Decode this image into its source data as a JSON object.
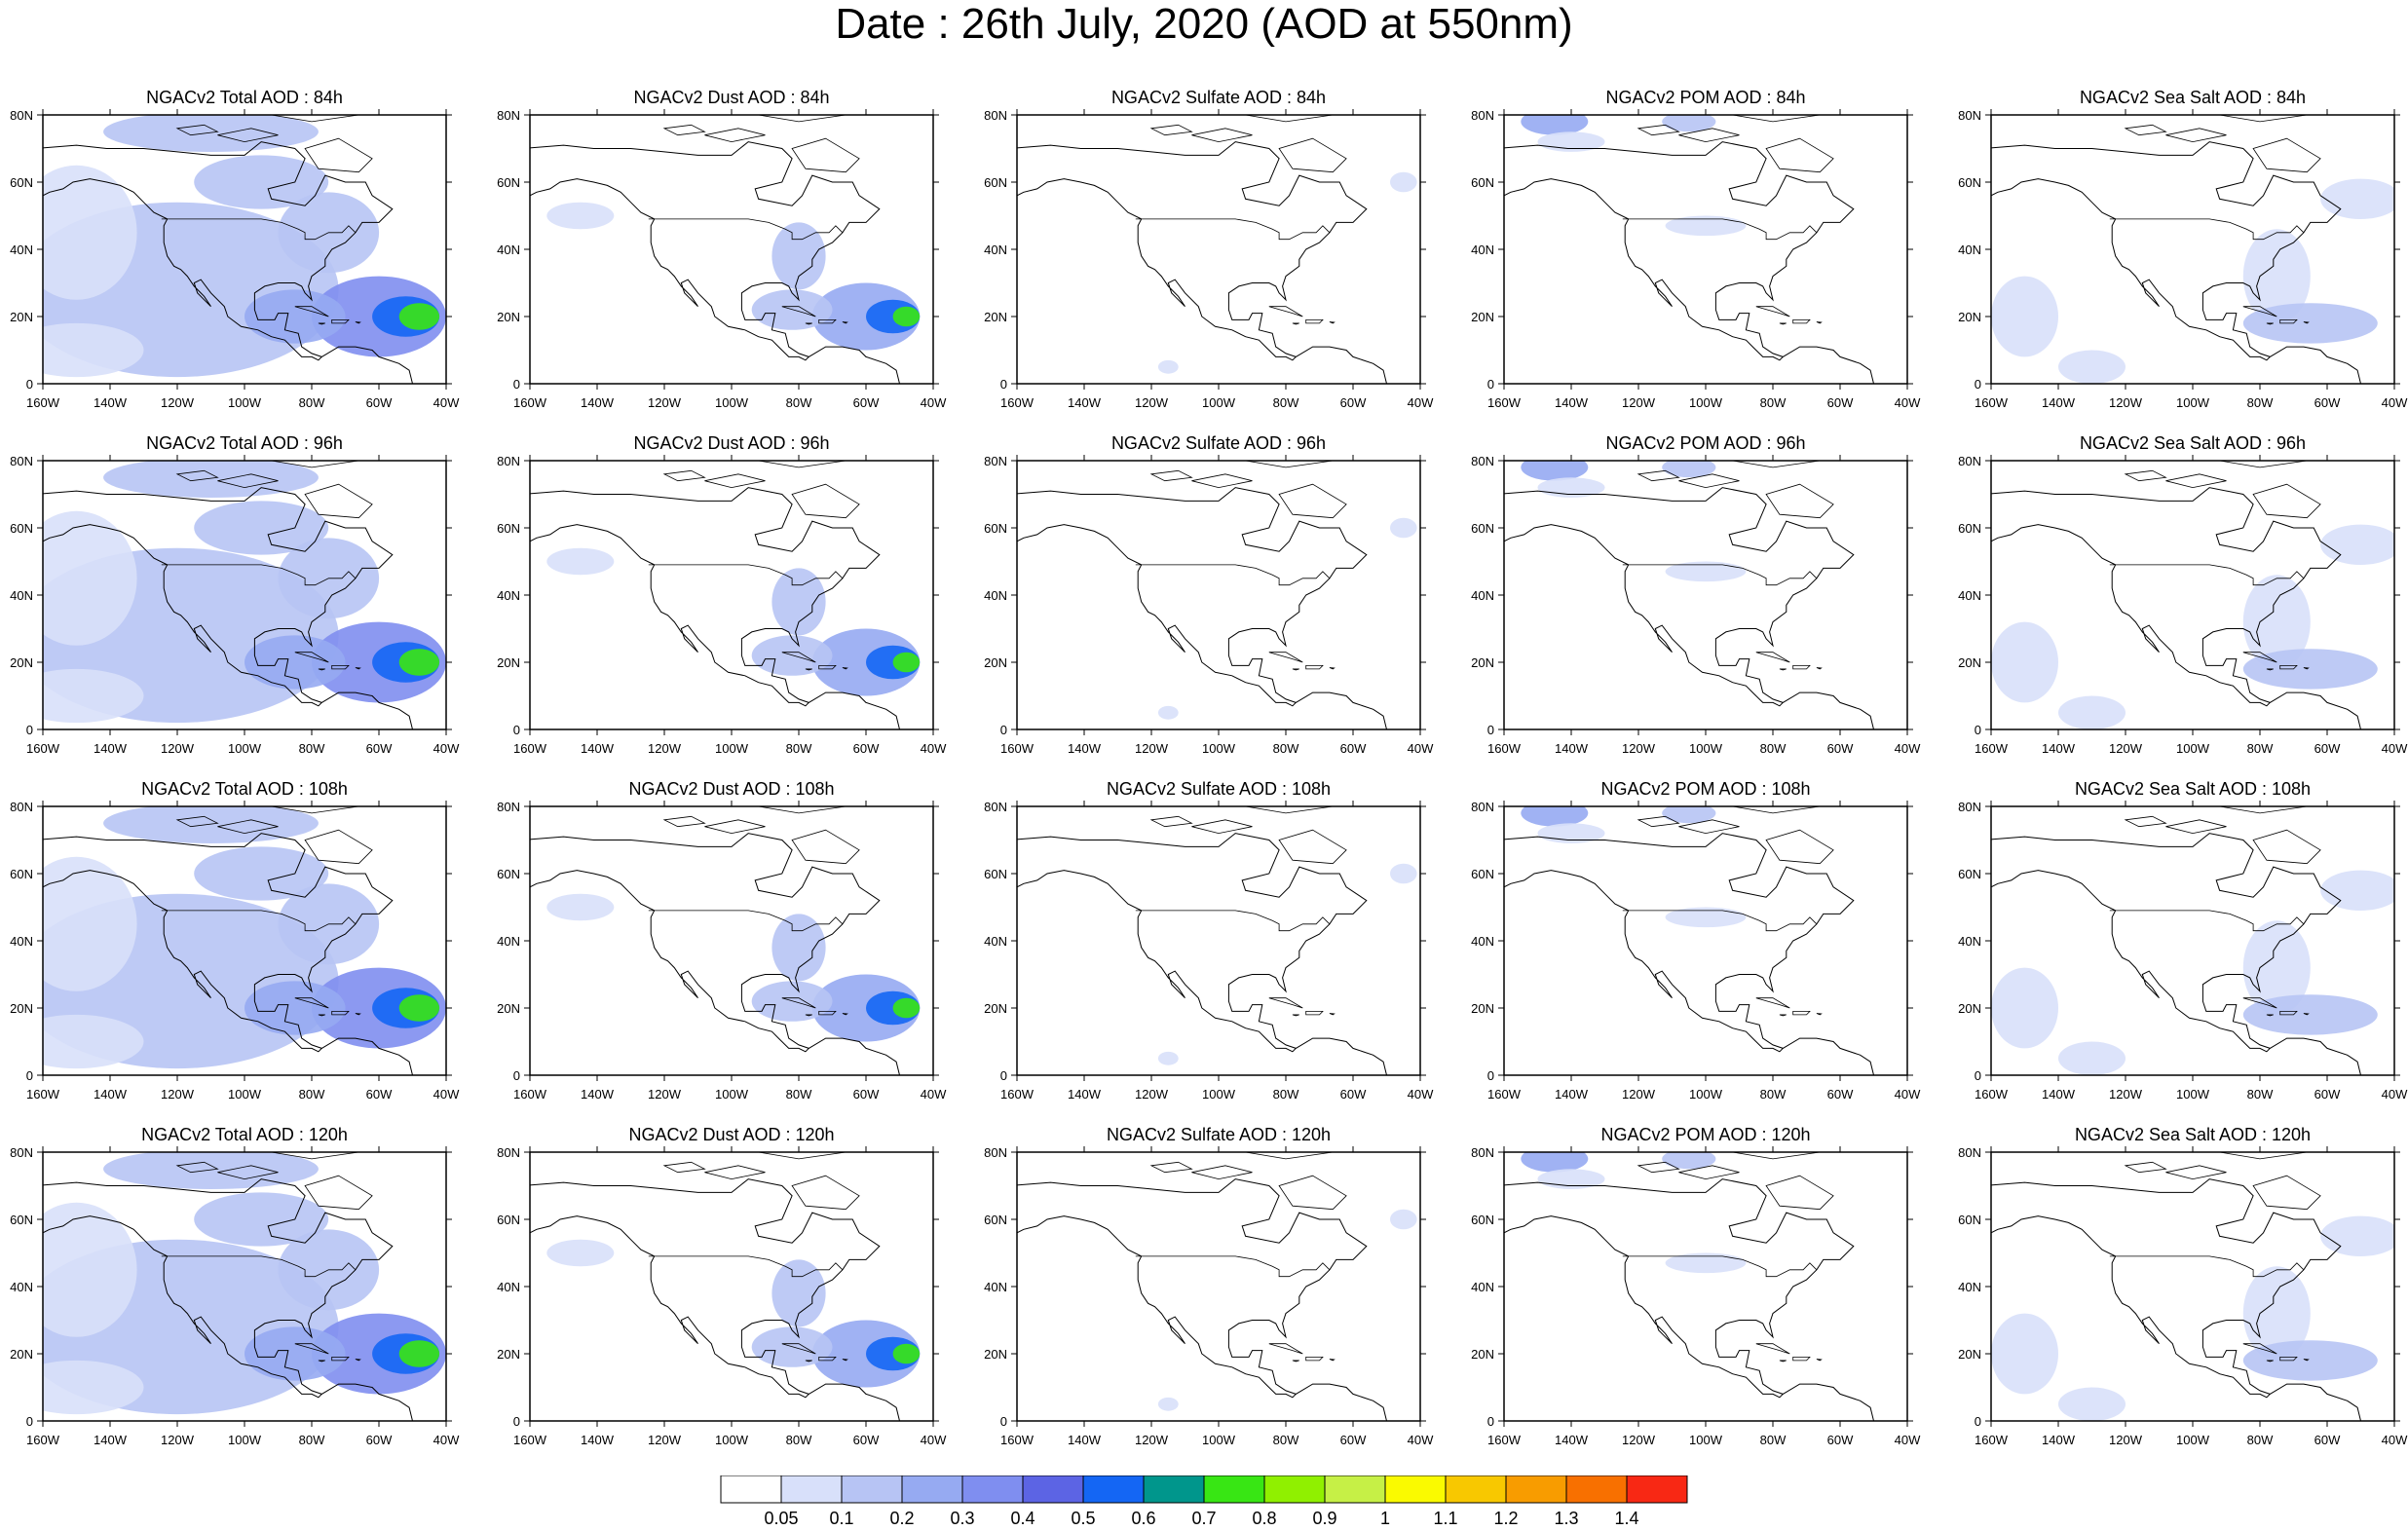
{
  "title": "Date : 26th July, 2020 (AOD at 550nm)",
  "lat_labels": [
    "80N",
    "60N",
    "40N",
    "20N",
    "0"
  ],
  "lon_labels": [
    "160W",
    "140W",
    "120W",
    "100W",
    "80W",
    "60W",
    "40W"
  ],
  "panels": [
    {
      "title": "NGACv2 Total AOD : 84h",
      "species": "total",
      "hour": 84
    },
    {
      "title": "NGACv2 Dust AOD : 84h",
      "species": "dust",
      "hour": 84
    },
    {
      "title": "NGACv2 Sulfate AOD : 84h",
      "species": "sulfate",
      "hour": 84
    },
    {
      "title": "NGACv2 POM AOD : 84h",
      "species": "pom",
      "hour": 84
    },
    {
      "title": "NGACv2 Sea Salt AOD : 84h",
      "species": "seasalt",
      "hour": 84
    },
    {
      "title": "NGACv2 Total AOD : 96h",
      "species": "total",
      "hour": 96
    },
    {
      "title": "NGACv2 Dust AOD : 96h",
      "species": "dust",
      "hour": 96
    },
    {
      "title": "NGACv2 Sulfate AOD : 96h",
      "species": "sulfate",
      "hour": 96
    },
    {
      "title": "NGACv2 POM AOD : 96h",
      "species": "pom",
      "hour": 96
    },
    {
      "title": "NGACv2 Sea Salt AOD : 96h",
      "species": "seasalt",
      "hour": 96
    },
    {
      "title": "NGACv2 Total AOD : 108h",
      "species": "total",
      "hour": 108
    },
    {
      "title": "NGACv2 Dust AOD : 108h",
      "species": "dust",
      "hour": 108
    },
    {
      "title": "NGACv2 Sulfate AOD : 108h",
      "species": "sulfate",
      "hour": 108
    },
    {
      "title": "NGACv2 POM AOD : 108h",
      "species": "pom",
      "hour": 108
    },
    {
      "title": "NGACv2 Sea Salt AOD : 108h",
      "species": "seasalt",
      "hour": 108
    },
    {
      "title": "NGACv2 Total AOD : 120h",
      "species": "total",
      "hour": 120
    },
    {
      "title": "NGACv2 Dust AOD : 120h",
      "species": "dust",
      "hour": 120
    },
    {
      "title": "NGACv2 Sulfate AOD : 120h",
      "species": "sulfate",
      "hour": 120
    },
    {
      "title": "NGACv2 POM AOD : 120h",
      "species": "pom",
      "hour": 120
    },
    {
      "title": "NGACv2 Sea Salt  AOD : 120h",
      "species": "seasalt",
      "hour": 120
    }
  ],
  "colorbar": {
    "labels": [
      "0.05",
      "0.1",
      "0.2",
      "0.3",
      "0.4",
      "0.5",
      "0.6",
      "0.7",
      "0.8",
      "0.9",
      "1",
      "1.1",
      "1.2",
      "1.3",
      "1.4"
    ],
    "colors": [
      "#ffffff",
      "#d8e0fa",
      "#b7c4f4",
      "#96aaf2",
      "#7f8ef0",
      "#5c64e4",
      "#1466f4",
      "#00968c",
      "#38e614",
      "#90f000",
      "#c6f046",
      "#fafa00",
      "#f8c800",
      "#f89c00",
      "#f87000",
      "#f82814"
    ]
  }
}
